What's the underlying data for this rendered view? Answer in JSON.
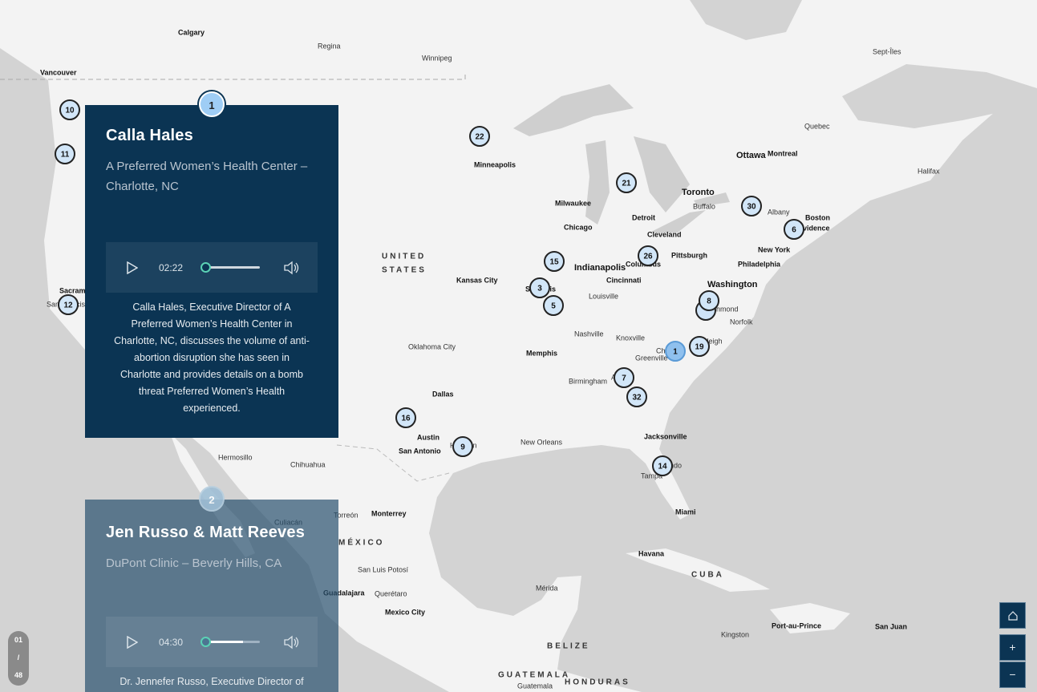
{
  "map": {
    "places": [
      "Calgary",
      "Regina",
      "Winnipeg",
      "Vancouver",
      "Sept-Îles",
      "Quebec",
      "Ottawa",
      "Montreal",
      "Halifax",
      "Minneapolis",
      "Toronto",
      "Buffalo",
      "Albany",
      "Boston",
      "Providence",
      "Milwaukee",
      "Detroit",
      "Chicago",
      "Cleveland",
      "Pittsburgh",
      "New York",
      "Philadelphia",
      "UNITED",
      "STATES",
      "Kansas City",
      "Indianapolis",
      "Columbus",
      "Cincinnati",
      "Washington",
      "Louisville",
      "St. Louis",
      "Richmond",
      "Norfolk",
      "Nashville",
      "Knoxville",
      "Raleigh",
      "Greenville",
      "Charlotte",
      "Oklahoma City",
      "Memphis",
      "Birmingham",
      "Atlanta",
      "Dallas",
      "Austin",
      "San Antonio",
      "Houston",
      "New Orleans",
      "Jacksonville",
      "Orlando",
      "Tampa",
      "Miami",
      "Hermosillo",
      "Chihuahua",
      "Culiacán",
      "Torreón",
      "Monterrey",
      "MÉXICO",
      "San Luis Potosí",
      "Guadalajara",
      "Querétaro",
      "Mexico City",
      "Havana",
      "CUBA",
      "Mérida",
      "BELIZE",
      "Kingston",
      "Port-au-Prince",
      "San Juan",
      "GUATEMALA",
      "Guatemala",
      "HONDURAS",
      "Sacramento",
      "San Francisco"
    ],
    "markers": [
      10,
      11,
      12,
      22,
      21,
      30,
      6,
      15,
      26,
      3,
      5,
      8,
      19,
      1,
      7,
      32,
      16,
      9,
      14
    ]
  },
  "stories": [
    {
      "number": 1,
      "title": "Calla Hales",
      "subtitle": "A Preferred Women’s Health Center – Charlotte, NC",
      "duration": "02:22",
      "description": "Calla Hales, Executive Director of A Preferred Women’s Health Center in Charlotte, NC, discusses the volume of anti-abortion disruption she has seen in Charlotte and provides details on a bomb threat Preferred Women’s Health experienced."
    },
    {
      "number": 2,
      "title": "Jen Russo & Matt Reeves",
      "subtitle": "DuPont Clinic – Beverly Hills, CA",
      "duration": "04:30",
      "description": "Dr. Jennefer Russo, Executive Director of"
    }
  ],
  "counter": {
    "current": "01",
    "separator": "/",
    "total": "48"
  },
  "controls": {
    "zoom_in": "+",
    "zoom_out": "−"
  }
}
